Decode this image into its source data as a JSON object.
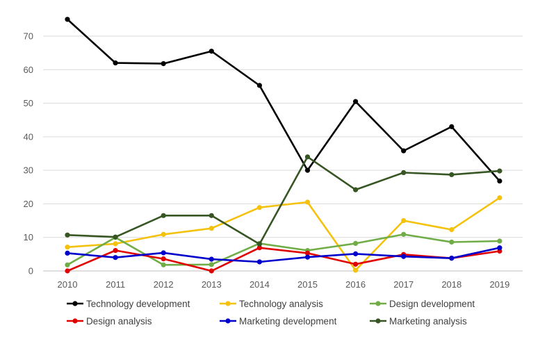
{
  "chart_data": {
    "type": "line",
    "title": "",
    "xlabel": "",
    "ylabel": "",
    "categories": [
      "2010",
      "2011",
      "2012",
      "2013",
      "2014",
      "2015",
      "2016",
      "2017",
      "2018",
      "2019"
    ],
    "ylim": [
      0,
      75
    ],
    "yticks": [
      0,
      10,
      20,
      30,
      40,
      50,
      60,
      70
    ],
    "grid": true,
    "legend_position": "bottom",
    "series": [
      {
        "name": "Technology development",
        "color": "#000000",
        "values": [
          75,
          62,
          61.8,
          65.5,
          55.3,
          30,
          50.5,
          35.8,
          43,
          26.8
        ]
      },
      {
        "name": "Technology analysis",
        "color": "#F4C20D",
        "values": [
          7.1,
          8.1,
          10.9,
          12.7,
          18.9,
          20.5,
          0.2,
          15,
          12.3,
          21.8
        ]
      },
      {
        "name": "Design development",
        "color": "#70AD47",
        "values": [
          1.8,
          10,
          1.8,
          1.9,
          8.2,
          6.1,
          8.2,
          10.9,
          8.6,
          8.9
        ]
      },
      {
        "name": "Design analysis",
        "color": "#E00000",
        "values": [
          0,
          6.1,
          3.6,
          0,
          6.9,
          5.3,
          2,
          4.9,
          3.8,
          5.9
        ]
      },
      {
        "name": "Marketing development",
        "color": "#0000CC",
        "values": [
          5.3,
          4,
          5.4,
          3.5,
          2.7,
          4.1,
          5.1,
          4.3,
          3.8,
          6.9
        ]
      },
      {
        "name": "Marketing analysis",
        "color": "#375623",
        "values": [
          10.7,
          10.1,
          16.5,
          16.5,
          8,
          34,
          24.2,
          29.3,
          28.7,
          29.8
        ]
      }
    ]
  }
}
